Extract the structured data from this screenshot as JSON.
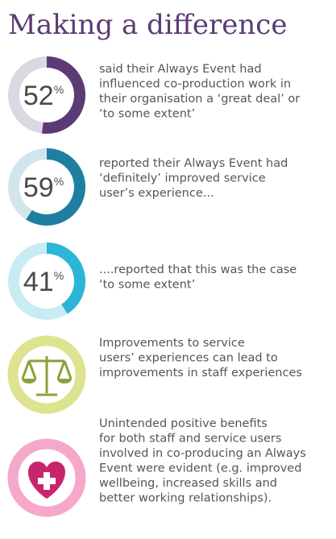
{
  "title": "Making a difference",
  "items": [
    {
      "value": 52,
      "unit": "%",
      "color": "#5c3b74",
      "track": "#dcd8e2",
      "lines": [
        "said their Always Event had",
        "influenced co-production work in",
        "their organisation a ‘great deal’ or",
        "‘to some extent’"
      ]
    },
    {
      "value": 59,
      "unit": "%",
      "color": "#1f7fa0",
      "track": "#d3e5ec",
      "lines": [
        "reported their Always Event had",
        "‘definitely’ improved service",
        "user’s experience..."
      ]
    },
    {
      "value": 41,
      "unit": "%",
      "color": "#2bb5d6",
      "track": "#c8ebf4",
      "lines": [
        "....reported that this was the case",
        "‘to some extent’"
      ]
    },
    {
      "lines": [
        "Improvements to service",
        "users’ experiences can lead to",
        "improvements in staff experiences"
      ]
    },
    {
      "lines": [
        "Unintended positive benefits",
        "for both staff and service users",
        "involved in co-producing an Always",
        "Event were evident (e.g. improved",
        "wellbeing, increased skills and",
        "better working relationships)."
      ]
    }
  ]
}
